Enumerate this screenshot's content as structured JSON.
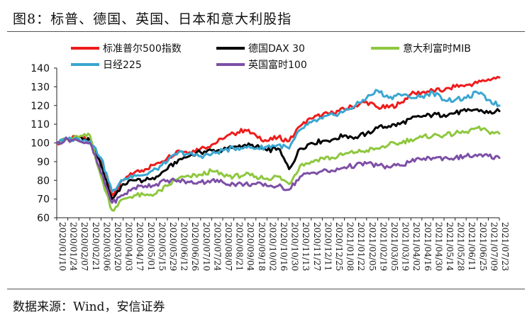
{
  "figure": {
    "title": "图8：标普、德国、英国、日本和意大利股指",
    "source": "数据来源：Wind，安信证券"
  },
  "chart_data": {
    "type": "line",
    "title": "",
    "xlabel": "",
    "ylabel": "",
    "ylim": [
      60,
      140
    ],
    "yticks": [
      60,
      70,
      80,
      90,
      100,
      110,
      120,
      130,
      140
    ],
    "x_labels": [
      "2020/01/10",
      "2020/01/24",
      "2020/02/07",
      "2020/02/21",
      "2020/03/06",
      "2020/03/20",
      "2020/04/03",
      "2020/04/17",
      "2020/05/01",
      "2020/05/15",
      "2020/05/29",
      "2020/06/12",
      "2020/06/26",
      "2020/07/10",
      "2020/07/24",
      "2020/08/07",
      "2020/08/21",
      "2020/09/04",
      "2020/09/18",
      "2020/10/02",
      "2020/10/16",
      "2020/10/30",
      "2020/11/13",
      "2020/11/27",
      "2020/12/11",
      "2020/12/25",
      "2021/01/08",
      "2021/01/22",
      "2021/02/05",
      "2021/02/19",
      "2021/03/05",
      "2021/03/19",
      "2021/04/02",
      "2021/04/16",
      "2021/04/30",
      "2021/05/14",
      "2021/05/28",
      "2021/06/11",
      "2021/06/25",
      "2021/07/09",
      "2021/07/23"
    ],
    "legend_placement": "top",
    "grid": false,
    "series": [
      {
        "name": "标准普尔500指数",
        "color": "#ee1c1c",
        "values": [
          100,
          102,
          103,
          101,
          90,
          72,
          80,
          84,
          86,
          89,
          92,
          96,
          95,
          97,
          99,
          102,
          105,
          107,
          104,
          101,
          103,
          101,
          109,
          113,
          115,
          116,
          118,
          120,
          122,
          119,
          119,
          121,
          126,
          127,
          128,
          128,
          130,
          131,
          132,
          134,
          135
        ]
      },
      {
        "name": "德国DAX 30",
        "color": "#000000",
        "values": [
          100,
          102,
          103,
          101,
          88,
          70,
          78,
          80,
          80,
          82,
          86,
          91,
          93,
          95,
          96,
          96,
          98,
          99,
          98,
          96,
          97,
          86,
          97,
          100,
          101,
          102,
          104,
          103,
          105,
          108,
          109,
          110,
          113,
          114,
          115,
          115,
          116,
          117,
          118,
          116,
          117
        ]
      },
      {
        "name": "意大利富时MIB",
        "color": "#8ec73f",
        "values": [
          100,
          102,
          103,
          104,
          82,
          64,
          70,
          72,
          72,
          73,
          77,
          81,
          82,
          83,
          85,
          83,
          82,
          83,
          82,
          81,
          82,
          78,
          88,
          90,
          92,
          92,
          94,
          95,
          96,
          97,
          99,
          100,
          102,
          103,
          104,
          104,
          105,
          106,
          108,
          106,
          105
        ]
      },
      {
        "name": "日经225",
        "color": "#3aa6d1",
        "values": [
          100,
          102,
          102,
          101,
          92,
          74,
          80,
          83,
          83,
          86,
          90,
          95,
          94,
          93,
          94,
          96,
          97,
          98,
          97,
          98,
          99,
          97,
          107,
          111,
          113,
          115,
          117,
          120,
          124,
          128,
          124,
          126,
          124,
          125,
          127,
          123,
          123,
          124,
          127,
          123,
          120
        ]
      },
      {
        "name": "英国富时100",
        "color": "#7d4fa6",
        "values": [
          100,
          102,
          101,
          100,
          84,
          68,
          72,
          76,
          77,
          78,
          80,
          80,
          79,
          79,
          80,
          79,
          78,
          78,
          78,
          77,
          77,
          75,
          82,
          84,
          85,
          85,
          87,
          88,
          89,
          88,
          87,
          88,
          90,
          91,
          92,
          92,
          92,
          93,
          93,
          93,
          92
        ]
      }
    ]
  }
}
